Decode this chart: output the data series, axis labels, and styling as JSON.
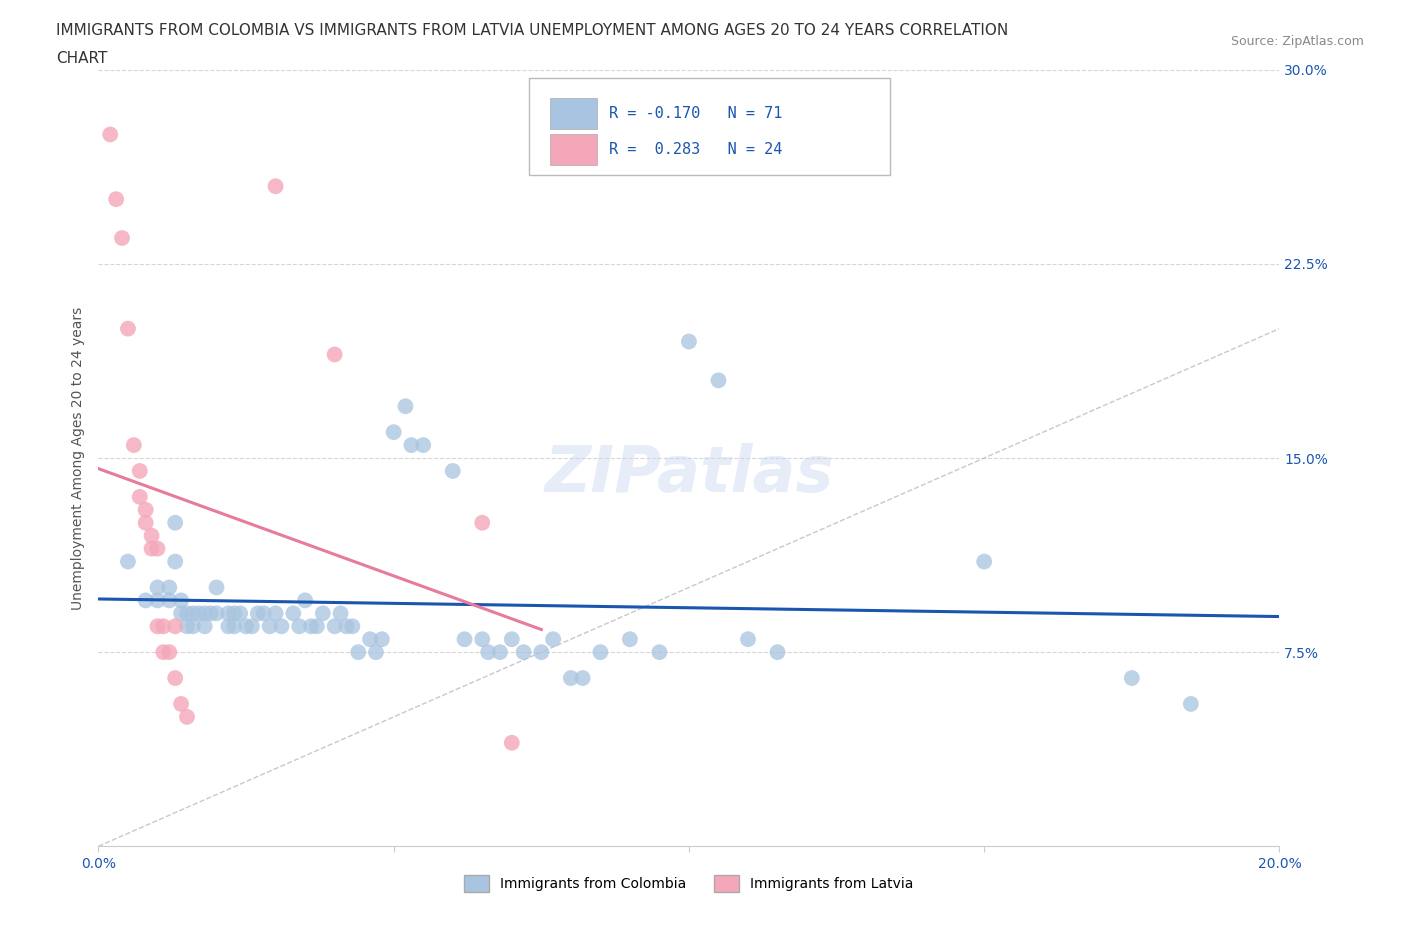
{
  "title_line1": "IMMIGRANTS FROM COLOMBIA VS IMMIGRANTS FROM LATVIA UNEMPLOYMENT AMONG AGES 20 TO 24 YEARS CORRELATION",
  "title_line2": "CHART",
  "source_text": "Source: ZipAtlas.com",
  "ylabel": "Unemployment Among Ages 20 to 24 years",
  "xlim": [
    0.0,
    0.2
  ],
  "ylim": [
    0.0,
    0.3
  ],
  "xticks": [
    0.0,
    0.05,
    0.1,
    0.15,
    0.2
  ],
  "yticks": [
    0.0,
    0.075,
    0.15,
    0.225,
    0.3
  ],
  "colombia_color": "#a8c4e0",
  "latvia_color": "#f4a7b9",
  "colombia_line_color": "#1a56b0",
  "latvia_line_color": "#e87b99",
  "r_colombia": -0.17,
  "n_colombia": 71,
  "r_latvia": 0.283,
  "n_latvia": 24,
  "colombia_points": [
    [
      0.005,
      0.11
    ],
    [
      0.008,
      0.095
    ],
    [
      0.01,
      0.095
    ],
    [
      0.01,
      0.1
    ],
    [
      0.012,
      0.095
    ],
    [
      0.012,
      0.1
    ],
    [
      0.013,
      0.11
    ],
    [
      0.013,
      0.125
    ],
    [
      0.014,
      0.09
    ],
    [
      0.014,
      0.095
    ],
    [
      0.015,
      0.085
    ],
    [
      0.015,
      0.09
    ],
    [
      0.016,
      0.09
    ],
    [
      0.016,
      0.085
    ],
    [
      0.017,
      0.09
    ],
    [
      0.018,
      0.085
    ],
    [
      0.018,
      0.09
    ],
    [
      0.019,
      0.09
    ],
    [
      0.02,
      0.1
    ],
    [
      0.02,
      0.09
    ],
    [
      0.022,
      0.085
    ],
    [
      0.022,
      0.09
    ],
    [
      0.023,
      0.09
    ],
    [
      0.023,
      0.085
    ],
    [
      0.024,
      0.09
    ],
    [
      0.025,
      0.085
    ],
    [
      0.026,
      0.085
    ],
    [
      0.027,
      0.09
    ],
    [
      0.028,
      0.09
    ],
    [
      0.029,
      0.085
    ],
    [
      0.03,
      0.09
    ],
    [
      0.031,
      0.085
    ],
    [
      0.033,
      0.09
    ],
    [
      0.034,
      0.085
    ],
    [
      0.035,
      0.095
    ],
    [
      0.036,
      0.085
    ],
    [
      0.037,
      0.085
    ],
    [
      0.038,
      0.09
    ],
    [
      0.04,
      0.085
    ],
    [
      0.041,
      0.09
    ],
    [
      0.042,
      0.085
    ],
    [
      0.043,
      0.085
    ],
    [
      0.044,
      0.075
    ],
    [
      0.046,
      0.08
    ],
    [
      0.047,
      0.075
    ],
    [
      0.048,
      0.08
    ],
    [
      0.05,
      0.16
    ],
    [
      0.052,
      0.17
    ],
    [
      0.053,
      0.155
    ],
    [
      0.055,
      0.155
    ],
    [
      0.06,
      0.145
    ],
    [
      0.062,
      0.08
    ],
    [
      0.065,
      0.08
    ],
    [
      0.066,
      0.075
    ],
    [
      0.068,
      0.075
    ],
    [
      0.07,
      0.08
    ],
    [
      0.072,
      0.075
    ],
    [
      0.075,
      0.075
    ],
    [
      0.077,
      0.08
    ],
    [
      0.08,
      0.065
    ],
    [
      0.082,
      0.065
    ],
    [
      0.085,
      0.075
    ],
    [
      0.09,
      0.08
    ],
    [
      0.095,
      0.075
    ],
    [
      0.1,
      0.195
    ],
    [
      0.105,
      0.18
    ],
    [
      0.11,
      0.08
    ],
    [
      0.115,
      0.075
    ],
    [
      0.15,
      0.11
    ],
    [
      0.175,
      0.065
    ],
    [
      0.185,
      0.055
    ]
  ],
  "latvia_points": [
    [
      0.002,
      0.275
    ],
    [
      0.003,
      0.25
    ],
    [
      0.004,
      0.235
    ],
    [
      0.005,
      0.2
    ],
    [
      0.006,
      0.155
    ],
    [
      0.007,
      0.145
    ],
    [
      0.007,
      0.135
    ],
    [
      0.008,
      0.13
    ],
    [
      0.008,
      0.125
    ],
    [
      0.009,
      0.12
    ],
    [
      0.009,
      0.115
    ],
    [
      0.01,
      0.115
    ],
    [
      0.01,
      0.085
    ],
    [
      0.011,
      0.085
    ],
    [
      0.011,
      0.075
    ],
    [
      0.012,
      0.075
    ],
    [
      0.013,
      0.085
    ],
    [
      0.013,
      0.065
    ],
    [
      0.014,
      0.055
    ],
    [
      0.015,
      0.05
    ],
    [
      0.03,
      0.255
    ],
    [
      0.04,
      0.19
    ],
    [
      0.065,
      0.125
    ],
    [
      0.07,
      0.04
    ]
  ],
  "watermark": "ZIPatlas",
  "background_color": "#ffffff",
  "grid_color": "#cccccc"
}
